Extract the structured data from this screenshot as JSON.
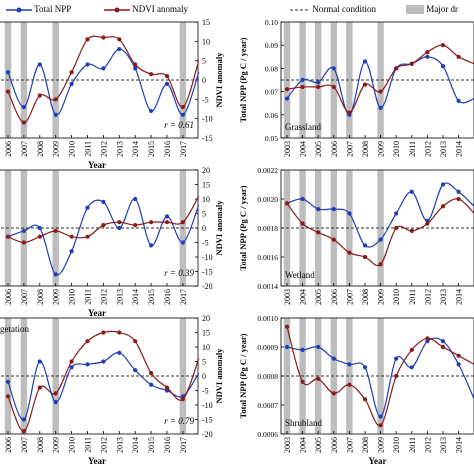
{
  "legend": {
    "total_npp": "Total NPP",
    "ndvi_anomaly": "NDVI anomaly",
    "normal_condition": "Normal condition",
    "major_drought": "Major dr"
  },
  "colors": {
    "npp": "#1f3fb5",
    "ndvi": "#8b1a1a",
    "drought": "#bdbdbd",
    "normal": "#333333"
  },
  "chart_data": [
    {
      "type": "line",
      "panel": "left-top",
      "years": [
        "2006",
        "2007",
        "2008",
        "2009",
        "2010",
        "2011",
        "2012",
        "2013",
        "2014",
        "2015",
        "2016",
        "2017",
        "2018"
      ],
      "drought_years": [
        "2006",
        "2007",
        "2009",
        "2017"
      ],
      "series": [
        {
          "name": "Total NPP",
          "values": [
            2,
            -7,
            4,
            -9,
            -1,
            4,
            3,
            8,
            3,
            -8,
            -1,
            -9,
            2
          ]
        },
        {
          "name": "NDVI anomaly",
          "values": [
            -3,
            -11,
            -4,
            -5,
            2,
            10.5,
            11,
            10.5,
            4,
            1.5,
            1,
            -7,
            5
          ]
        }
      ],
      "y2_ticks": [
        "15",
        "10",
        "5",
        "0",
        "-5",
        "-10",
        "-15"
      ],
      "ylim": [
        -15,
        15
      ],
      "y2label": "NDVI anomaly",
      "xlabel": "Year",
      "r_label": "r = 0.61"
    },
    {
      "type": "line",
      "panel": "right-top",
      "years": [
        "2003",
        "2004",
        "2005",
        "2006",
        "2007",
        "2008",
        "2009",
        "2010",
        "2011",
        "2012",
        "2013",
        "2014",
        "2015"
      ],
      "drought_years": [
        "2003",
        "2004",
        "2005",
        "2006",
        "2007",
        "2009"
      ],
      "series": [
        {
          "name": "Total NPP",
          "values": [
            0.067,
            0.075,
            0.074,
            0.08,
            0.06,
            0.083,
            0.063,
            0.08,
            0.082,
            0.085,
            0.081,
            0.066,
            0.067
          ]
        },
        {
          "name": "NDVI anomaly",
          "values": [
            0.071,
            0.072,
            0.072,
            0.072,
            0.061,
            0.073,
            0.07,
            0.08,
            0.082,
            0.087,
            0.09,
            0.085,
            0.082
          ]
        }
      ],
      "y_ticks": [
        "0.10",
        "0.09",
        "0.08",
        "0.07",
        "0.06",
        "0.05"
      ],
      "ylim": [
        0.05,
        0.1
      ],
      "normal_value": 0.075,
      "ylabel": "Total NPP (Pg C / year)",
      "xlabel": "",
      "panel_label": "Grassland"
    },
    {
      "type": "line",
      "panel": "left-middle",
      "years": [
        "2006",
        "2007",
        "2008",
        "2009",
        "2010",
        "2011",
        "2012",
        "2013",
        "2014",
        "2015",
        "2016",
        "2017",
        "2018"
      ],
      "drought_years": [
        "2006",
        "2007",
        "2009",
        "2017"
      ],
      "series": [
        {
          "name": "Total NPP",
          "values": [
            -3,
            -1,
            0,
            -16,
            -8,
            7,
            9,
            0,
            10,
            -6,
            4,
            -5,
            8
          ]
        },
        {
          "name": "NDVI anomaly",
          "values": [
            -3,
            -5,
            -3,
            -1,
            -3,
            -3,
            1,
            2,
            1,
            2,
            2,
            2,
            11
          ]
        }
      ],
      "y2_ticks": [
        "20",
        "15",
        "10",
        "5",
        "0",
        "-5",
        "-10",
        "-15",
        "-20"
      ],
      "ylim": [
        -20,
        20
      ],
      "y2label": "NDVI anomaly",
      "xlabel": "Year",
      "r_label": "r = 0.39"
    },
    {
      "type": "line",
      "panel": "right-middle",
      "years": [
        "2003",
        "2004",
        "2005",
        "2006",
        "2007",
        "2008",
        "2009",
        "2010",
        "2011",
        "2012",
        "2013",
        "2014",
        "2015"
      ],
      "drought_years": [
        "2003",
        "2004",
        "2005",
        "2006",
        "2007",
        "2009"
      ],
      "series": [
        {
          "name": "Total NPP",
          "values": [
            0.00197,
            0.002,
            0.00193,
            0.00193,
            0.0019,
            0.00168,
            0.00172,
            0.0019,
            0.00205,
            0.00185,
            0.0021,
            0.00205,
            0.00195
          ]
        },
        {
          "name": "NDVI anomaly",
          "values": [
            0.00197,
            0.00183,
            0.00177,
            0.00172,
            0.00163,
            0.0016,
            0.00155,
            0.0018,
            0.00178,
            0.00183,
            0.00195,
            0.002,
            0.0019
          ]
        }
      ],
      "y_ticks": [
        "0.0022",
        "0.0020",
        "0.0018",
        "0.0016",
        "0.0014"
      ],
      "ylim": [
        0.0014,
        0.0022
      ],
      "normal_value": 0.0018,
      "ylabel": "Total NPP (Pg C / year)",
      "xlabel": "",
      "panel_label": "Wetland"
    },
    {
      "type": "line",
      "panel": "left-bottom",
      "years": [
        "2006",
        "2007",
        "2008",
        "2009",
        "2010",
        "2011",
        "2012",
        "2013",
        "2014",
        "2015",
        "2016",
        "2017",
        "2018"
      ],
      "drought_years": [
        "2006",
        "2007",
        "2009",
        "2017"
      ],
      "series": [
        {
          "name": "Total NPP",
          "values": [
            -2,
            -15,
            5,
            -9,
            3,
            4,
            5,
            8,
            2,
            -3,
            -5,
            -7,
            1
          ]
        },
        {
          "name": "NDVI anomaly",
          "values": [
            -7,
            -19,
            -4,
            -6,
            5,
            12,
            15,
            15,
            12,
            1,
            -4,
            -8,
            6
          ]
        }
      ],
      "y2_ticks": [
        "20",
        "15",
        "10",
        "5",
        "0",
        "-5",
        "-10",
        "-15",
        "-20"
      ],
      "ylim": [
        -20,
        20
      ],
      "y2label": "NDVI anomaly",
      "xlabel": "Year",
      "r_label": "r = 0.79",
      "panel_label": "getation"
    },
    {
      "type": "line",
      "panel": "right-bottom",
      "years": [
        "2003",
        "2004",
        "2005",
        "2006",
        "2007",
        "2008",
        "2009",
        "2010",
        "2011",
        "2012",
        "2013",
        "2014",
        "2015"
      ],
      "drought_years": [
        "2003",
        "2004",
        "2005",
        "2006",
        "2007",
        "2009"
      ],
      "series": [
        {
          "name": "Total NPP",
          "values": [
            0.0009,
            0.00089,
            0.0009,
            0.00086,
            0.00084,
            0.00083,
            0.00066,
            0.00086,
            0.00083,
            0.00092,
            0.00092,
            0.00084,
            0.00072
          ]
        },
        {
          "name": "NDVI anomaly",
          "values": [
            0.00097,
            0.00078,
            0.00079,
            0.00074,
            0.00077,
            0.00072,
            0.00063,
            0.0008,
            0.00089,
            0.00093,
            0.0009,
            0.00087,
            0.00084
          ]
        }
      ],
      "y_ticks": [
        "0.0010",
        "0.0009",
        "0.0008",
        "0.0007",
        "0.0006"
      ],
      "ylim": [
        0.0006,
        0.001
      ],
      "normal_value": 0.0008,
      "ylabel": "Total NPP (Pg C / year)",
      "xlabel": "Year",
      "panel_label": "Shrubland"
    }
  ]
}
